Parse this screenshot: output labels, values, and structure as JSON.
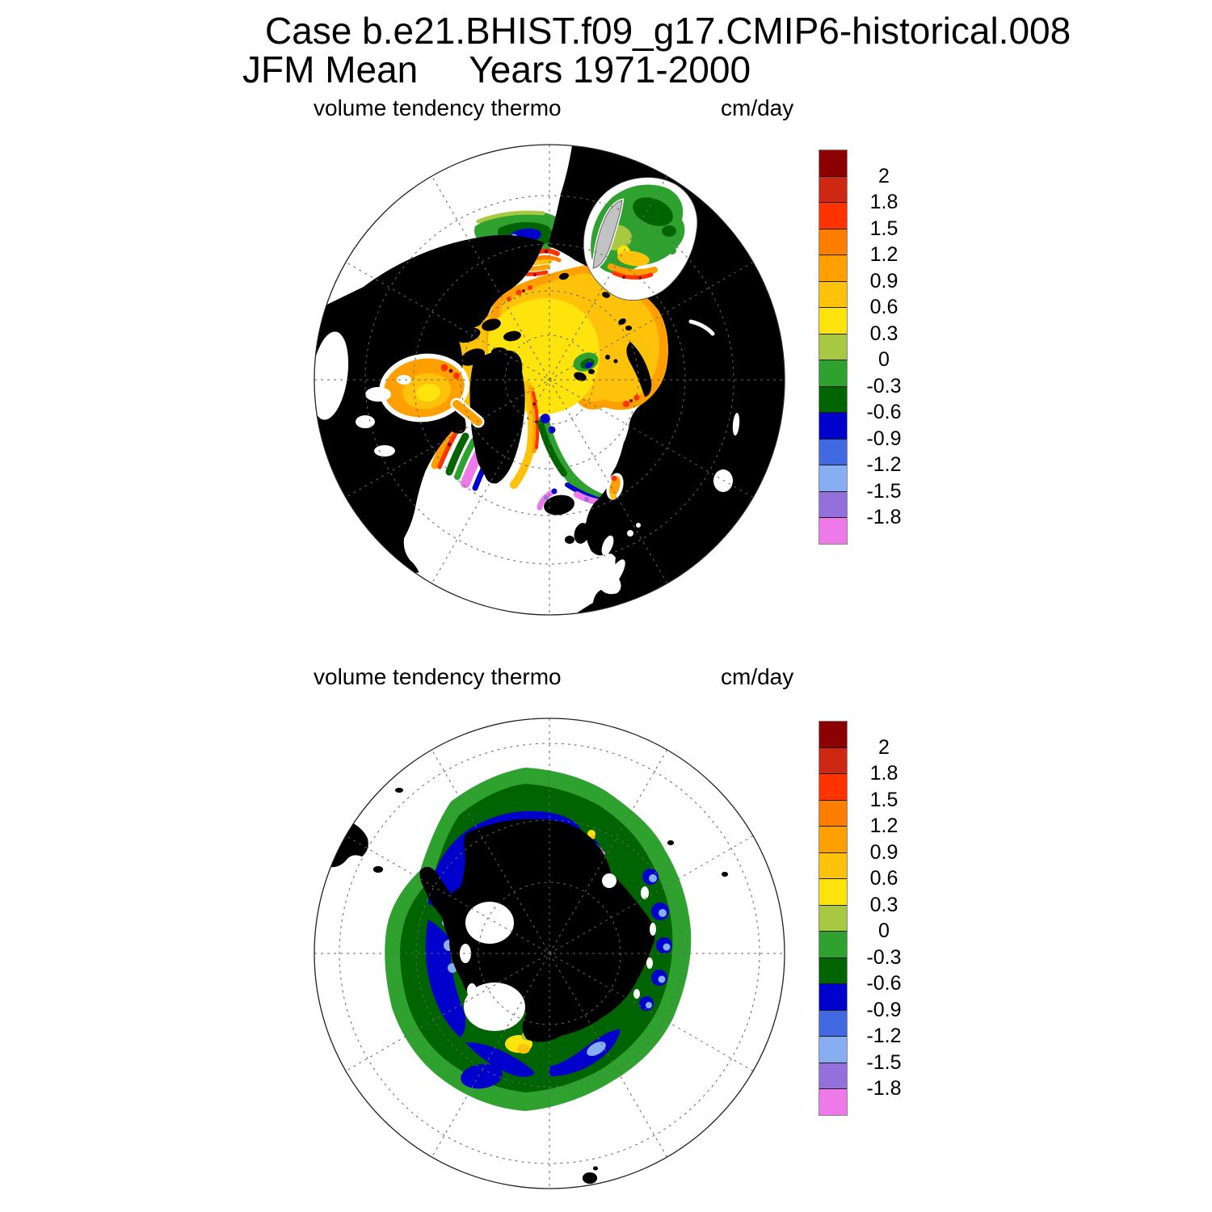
{
  "title": {
    "line1": "Case b.e21.BHIST.f09_g17.CMIP6-historical.008",
    "line2": "JFM Mean     Years 1971-2000"
  },
  "panels": [
    {
      "name": "northern-hemisphere",
      "field_label": "volume tendency thermo",
      "units_label": "cm/day"
    },
    {
      "name": "southern-hemisphere",
      "field_label": "volume tendency thermo",
      "units_label": "cm/day"
    }
  ],
  "colorbar": {
    "tick_labels": [
      "2",
      "1.8",
      "1.5",
      "1.2",
      "0.9",
      "0.6",
      "0.3",
      "0",
      "-0.3",
      "-0.6",
      "-0.9",
      "-1.2",
      "-1.5",
      "-1.8"
    ],
    "blocks": [
      {
        "range": "> 2",
        "hex": "#8B0000"
      },
      {
        "range": "1.8 to 2",
        "hex": "#CC2814"
      },
      {
        "range": "1.5 to 1.8",
        "hex": "#FF3300"
      },
      {
        "range": "1.2 to 1.5",
        "hex": "#FF7E00"
      },
      {
        "range": "0.9 to 1.2",
        "hex": "#FF9F00"
      },
      {
        "range": "0.6 to 0.9",
        "hex": "#FFC20A"
      },
      {
        "range": "0.3 to 0.6",
        "hex": "#FFE30C"
      },
      {
        "range": "0 to 0.3",
        "hex": "#A8C841"
      },
      {
        "range": "-0.3 to 0",
        "hex": "#2FA12F"
      },
      {
        "range": "-0.6 to -0.3",
        "hex": "#006400"
      },
      {
        "range": "-0.9 to -0.6",
        "hex": "#0000CD"
      },
      {
        "range": "-1.2 to -0.9",
        "hex": "#4169E1"
      },
      {
        "range": "-1.5 to -1.2",
        "hex": "#87AEF0"
      },
      {
        "range": "-1.8 to -1.5",
        "hex": "#9370DB"
      },
      {
        "range": "< -1.8",
        "hex": "#EE7AE9"
      }
    ],
    "land_color": "#C2C2C2",
    "ocean_color": "#FFFFFF"
  },
  "chart_data": [
    {
      "type": "heatmap",
      "projection": "north polar stereographic",
      "title": "volume tendency thermo",
      "units": "cm/day",
      "season": "JFM",
      "years": "1971-2000",
      "case": "b.e21.BHIST.f09_g17.CMIP6-historical.008",
      "contour_levels": [
        -1.8,
        -1.5,
        -1.2,
        -0.9,
        -0.6,
        -0.3,
        0,
        0.3,
        0.6,
        0.9,
        1.2,
        1.5,
        1.8,
        2
      ],
      "palette_low_to_high": [
        "#EE7AE9",
        "#9370DB",
        "#87AEF0",
        "#4169E1",
        "#0000CD",
        "#006400",
        "#2FA12F",
        "#A8C841",
        "#FFE30C",
        "#FFC20A",
        "#FF9F00",
        "#FF7E00",
        "#FF3300",
        "#CC2814",
        "#8B0000"
      ],
      "features": [
        "central Arctic Ocean pack mostly 0.3-0.9 cm/day (yellow core, amber ring) with 0.9-1.5 orange rim near coasts",
        "Bering Sea band: negative core near -0.9 (blue) ringed by -0.6 to 0 greens; strong positive 1.2-2 band at Bering Strait",
        "Sea of Okhotsk: -0.6 to 0 greens in north, 0-0.9 yellows in center, 1.2-1.8 along southern ice edge",
        "Hudson Bay 0.9-1.2 with >1.5 spots on northeast rim",
        "Labrador Sea / Davis Strait: positive near coast, magenta < -1.8 and blue -0.9 bands at the ice edge",
        "East Greenland and Denmark Strait: positive coastal strip, green/blue/magenta bands offshore",
        "Barents Sea 0.3-0.9 with 1.5-1.8 specks at the southern ice edge"
      ]
    },
    {
      "type": "heatmap",
      "projection": "south polar stereographic",
      "title": "volume tendency thermo",
      "units": "cm/day",
      "season": "JFM",
      "years": "1971-2000",
      "case": "b.e21.BHIST.f09_g17.CMIP6-historical.008",
      "contour_levels": [
        -1.8,
        -1.5,
        -1.2,
        -0.9,
        -0.6,
        -0.3,
        0,
        0.3,
        0.6,
        0.9,
        1.2,
        1.5,
        1.8,
        2
      ],
      "palette_low_to_high": [
        "#EE7AE9",
        "#9370DB",
        "#87AEF0",
        "#4169E1",
        "#0000CD",
        "#006400",
        "#2FA12F",
        "#A8C841",
        "#FFE30C",
        "#FFC20A",
        "#FF9F00",
        "#FF7E00",
        "#FF3300",
        "#CC2814",
        "#8B0000"
      ],
      "features": [
        "circumpolar ring of -0.6 to -0.3 cm/day (dark green) with -0.3 to 0 outer fringe around Antarctica",
        "Weddell Sea: broad -0.9 to -0.6 blue area with -1.2 to -1.5 light-blue spots",
        "coastal scallops of -0.9 to -1.5 (blue/light blue) along East Antarctic and bottom-right coasts",
        "isolated violet/magenta (< -1.5) pixels near the northern coast",
        "positive 0.3-0.9 yellow patches at southwest Weddell, Amundsen coast and near the Ross Sea",
        "gray Antarctica with white Ross and Ronne ice shelves; tip of South America upper left"
      ]
    }
  ]
}
